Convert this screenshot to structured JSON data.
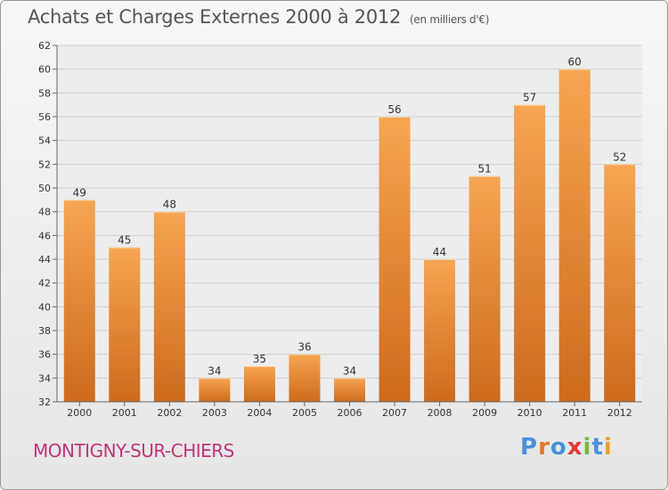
{
  "title": "Achats et Charges Externes 2000 à 2012",
  "subtitle": "(en milliers d'€)",
  "commune": "MONTIGNY-SUR-CHIERS",
  "logo": {
    "letters": [
      "P",
      "r",
      "o",
      "x",
      "i",
      "t",
      "i"
    ],
    "colors": [
      "#4a90d9",
      "#e8772a",
      "#4a90d9",
      "#e03c3c",
      "#7ab648",
      "#4a90d9",
      "#e8a12a"
    ]
  },
  "colors": {
    "bar_top": "#f6a552",
    "bar_bottom": "#cd6a1d",
    "grid": "#cfcfcf",
    "accent": "#c0347a"
  },
  "chart_data": {
    "type": "bar",
    "categories": [
      "2000",
      "2001",
      "2002",
      "2003",
      "2004",
      "2005",
      "2006",
      "2007",
      "2008",
      "2009",
      "2010",
      "2011",
      "2012"
    ],
    "values": [
      49,
      45,
      48,
      34,
      35,
      36,
      34,
      56,
      44,
      51,
      57,
      60,
      52
    ],
    "data_labels": [
      "49",
      "45",
      "48",
      "34",
      "35",
      "36",
      "34",
      "56",
      "44",
      "51",
      "57",
      "60",
      "52"
    ],
    "ylim": [
      32,
      62
    ],
    "yticks": [
      "32",
      "34",
      "36",
      "38",
      "40",
      "42",
      "44",
      "46",
      "48",
      "50",
      "52",
      "54",
      "56",
      "58",
      "60",
      "62"
    ],
    "xlabel": "",
    "ylabel": "",
    "grid": true
  }
}
